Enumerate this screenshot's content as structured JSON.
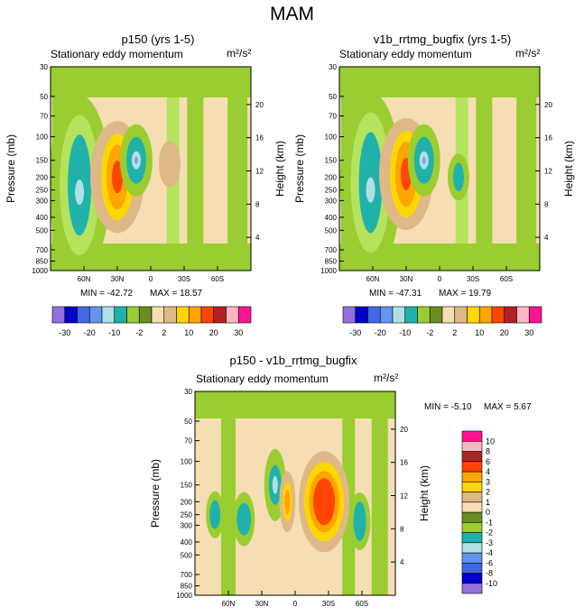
{
  "figure_title": "MAM",
  "colors": {
    "levels": [
      "#9370db",
      "#0000cd",
      "#4169e1",
      "#6495ed",
      "#b0e0e6",
      "#20b2aa",
      "#9acd32",
      "#6b8e23",
      "#f5deb3",
      "#deb887",
      "#ffd700",
      "#ffa500",
      "#ff4500",
      "#b22222",
      "#ffb6c1",
      "#ff1493"
    ],
    "contour_palette": {
      "neg_light": "#9acd32",
      "neg_mid": "#b5e35d",
      "neg_teal": "#20b2aa",
      "neg_pale": "#b0e0e6",
      "neg_blue": "#8a9ee6",
      "zero": "#f5deb3",
      "pos_tan": "#deb887",
      "pos_yellow": "#ffd700",
      "pos_orange": "#ffa500",
      "pos_red": "#ff4500"
    }
  },
  "panels": [
    {
      "title": "p150 (yrs 1-5)",
      "subtitle": "Stationary eddy momentum",
      "units": "m²/s²",
      "ylabel": "Pressure (mb)",
      "y2label": "Height (km)",
      "min_label": "MIN = -42.72",
      "max_label": "MAX = 18.57"
    },
    {
      "title": "v1b_rrtmg_bugfix (yrs 1-5)",
      "subtitle": "Stationary eddy momentum",
      "units": "m²/s²",
      "ylabel": "Pressure (mb)",
      "y2label": "Height (km)",
      "min_label": "MIN = -47.31",
      "max_label": "MAX = 19.79"
    },
    {
      "title": "p150 - v1b_rrtmg_bugfix",
      "subtitle": "Stationary eddy momentum",
      "units": "m²/s²",
      "ylabel": "Pressure (mb)",
      "y2label": "Height (km)",
      "min_label": "MIN = -5.10",
      "max_label": "MAX = 5.67"
    }
  ],
  "chart_data": [
    {
      "type": "heatmap",
      "title": "p150 (yrs 1-5)",
      "subtitle": "Stationary eddy momentum",
      "units": "m²/s²",
      "ylabel": "Pressure (mb)",
      "y2label": "Height (km)",
      "x_ticks": [
        "60N",
        "30N",
        "0",
        "30S",
        "60S"
      ],
      "x_tick_values": [
        60,
        30,
        0,
        -30,
        -60
      ],
      "xlim": [
        90,
        -90
      ],
      "p_ticks": [
        30,
        50,
        70,
        100,
        150,
        200,
        250,
        300,
        400,
        500,
        700,
        850,
        1000
      ],
      "z_ticks": [
        4,
        8,
        12,
        16,
        20
      ],
      "ylim": [
        30,
        1000
      ],
      "min": -42.72,
      "max": 18.57,
      "colorbar_levels": [
        -30,
        -25,
        -20,
        -15,
        -10,
        -5,
        -2,
        0,
        2,
        5,
        10,
        15,
        20,
        25,
        30
      ],
      "colorbar_labels": [
        "-30",
        "-20",
        "-10",
        "-2",
        "2",
        "10",
        "20",
        "30"
      ],
      "colorbar_label_indices": [
        0,
        2,
        4,
        6,
        8,
        10,
        12,
        14
      ],
      "features": [
        {
          "lat": 64,
          "p": 230,
          "value": -20
        },
        {
          "lat": 30,
          "p": 200,
          "value": 15
        },
        {
          "lat": 13,
          "p": 150,
          "value": -20
        },
        {
          "lat": -17,
          "p": 160,
          "value": 2
        }
      ]
    },
    {
      "type": "heatmap",
      "title": "v1b_rrtmg_bugfix (yrs 1-5)",
      "subtitle": "Stationary eddy momentum",
      "units": "m²/s²",
      "ylabel": "Pressure (mb)",
      "y2label": "Height (km)",
      "x_ticks": [
        "60N",
        "30N",
        "0",
        "30S",
        "60S"
      ],
      "x_tick_values": [
        60,
        30,
        0,
        -30,
        -60
      ],
      "xlim": [
        90,
        -90
      ],
      "p_ticks": [
        30,
        50,
        70,
        100,
        150,
        200,
        250,
        300,
        400,
        500,
        700,
        850,
        1000
      ],
      "z_ticks": [
        4,
        8,
        12,
        16,
        20
      ],
      "ylim": [
        30,
        1000
      ],
      "min": -47.31,
      "max": 19.79,
      "colorbar_levels": [
        -30,
        -25,
        -20,
        -15,
        -10,
        -5,
        -2,
        0,
        2,
        5,
        10,
        15,
        20,
        25,
        30
      ],
      "colorbar_labels": [
        "-30",
        "-20",
        "-10",
        "-2",
        "2",
        "10",
        "20",
        "30"
      ],
      "colorbar_label_indices": [
        0,
        2,
        4,
        6,
        8,
        10,
        12,
        14
      ],
      "features": [
        {
          "lat": 62,
          "p": 220,
          "value": -20
        },
        {
          "lat": 30,
          "p": 190,
          "value": 20
        },
        {
          "lat": 14,
          "p": 150,
          "value": -20
        },
        {
          "lat": -17,
          "p": 200,
          "value": -10
        }
      ]
    },
    {
      "type": "heatmap",
      "title": "p150 - v1b_rrtmg_bugfix",
      "subtitle": "Stationary eddy momentum",
      "units": "m²/s²",
      "ylabel": "Pressure (mb)",
      "y2label": "Height (km)",
      "x_ticks": [
        "60N",
        "30N",
        "0",
        "30S",
        "60S"
      ],
      "x_tick_values": [
        60,
        30,
        0,
        -30,
        -60
      ],
      "xlim": [
        90,
        -90
      ],
      "p_ticks": [
        30,
        50,
        70,
        100,
        150,
        200,
        250,
        300,
        400,
        500,
        700,
        850,
        1000
      ],
      "z_ticks": [
        4,
        8,
        12,
        16,
        20
      ],
      "ylim": [
        30,
        1000
      ],
      "min": -5.1,
      "max": 5.67,
      "colorbar_levels": [
        -10,
        -8,
        -6,
        -4,
        -3,
        -2,
        -1,
        0,
        1,
        2,
        3,
        4,
        6,
        8,
        10
      ],
      "colorbar_labels": [
        "-10",
        "-8",
        "-6",
        "-4",
        "-3",
        "-2",
        "-1",
        "0",
        "1",
        "2",
        "3",
        "4",
        "6",
        "8",
        "10"
      ],
      "features": [
        {
          "lat": 18,
          "p": 150,
          "value": -4
        },
        {
          "lat": 7,
          "p": 200,
          "value": 3
        },
        {
          "lat": -26,
          "p": 200,
          "value": 5
        },
        {
          "lat": 46,
          "p": 270,
          "value": -3
        },
        {
          "lat": -58,
          "p": 280,
          "value": -3
        },
        {
          "lat": 72,
          "p": 250,
          "value": -3
        }
      ]
    }
  ]
}
